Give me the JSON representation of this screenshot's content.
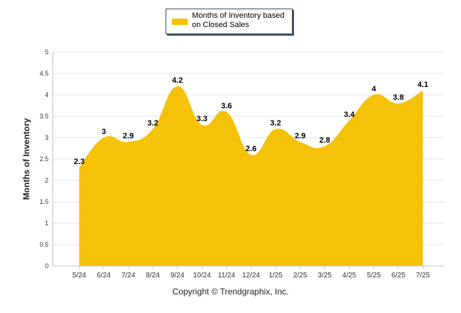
{
  "legend": {
    "label": "Months of Inventory based on Closed Sales",
    "color": "#f5c20a"
  },
  "footer": {
    "credit": "Copyright © Trendgraphix, Inc."
  },
  "chart_data": {
    "type": "area",
    "categories": [
      "5/24",
      "6/24",
      "7/24",
      "8/24",
      "9/24",
      "10/24",
      "11/24",
      "12/24",
      "1/25",
      "2/25",
      "3/25",
      "4/25",
      "5/25",
      "6/25",
      "7/25"
    ],
    "series": [
      {
        "name": "Months of Inventory based on Closed Sales",
        "values": [
          2.3,
          3,
          2.9,
          3.2,
          4.2,
          3.3,
          3.6,
          2.6,
          3.2,
          2.9,
          2.8,
          3.4,
          4,
          3.8,
          4.1
        ],
        "color": "#f5c20a"
      }
    ],
    "data_labels": [
      "2.3",
      "3",
      "2.9",
      "3.2",
      "4.2",
      "3.3",
      "3.6",
      "2.6",
      "3.2",
      "2.9",
      "2.8",
      "3.4",
      "4",
      "3.8",
      "4.1"
    ],
    "ylabel": "Months of Inventory",
    "xlabel": "",
    "ylim": [
      0,
      5
    ],
    "yticks": [
      "0",
      "0.5",
      "1",
      "1.5",
      "2",
      "2.5",
      "3",
      "3.5",
      "4",
      "4.5",
      "5"
    ],
    "grid": true,
    "legend_position": "top-center",
    "smooth": true
  }
}
